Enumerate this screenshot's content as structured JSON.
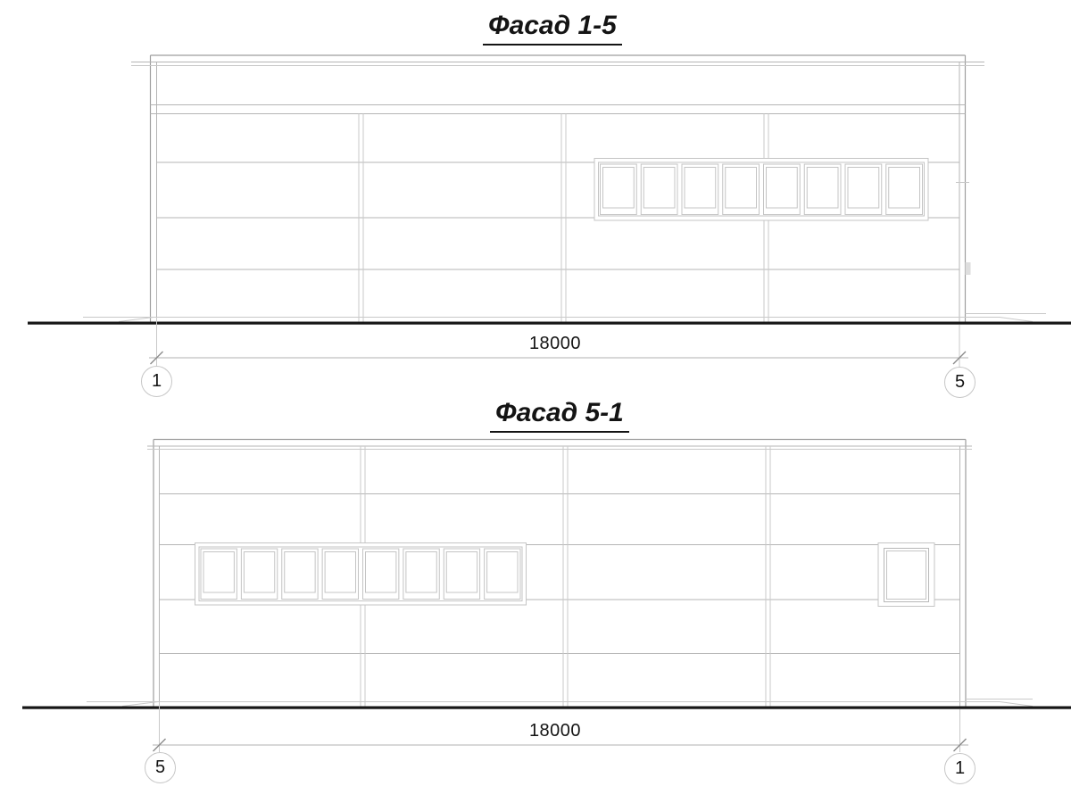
{
  "page": {
    "background_color": "#ffffff"
  },
  "facades": [
    {
      "title": "Фасад 1-5",
      "dimension_label": "18000",
      "grid_marker_left": "1",
      "grid_marker_right": "5",
      "window_band_panes": 8
    },
    {
      "title": "Фасад 5-1",
      "dimension_label": "18000",
      "grid_marker_left": "5",
      "grid_marker_right": "1",
      "window_band_panes": 8
    }
  ],
  "colors": {
    "line_dark": "#9e9e9e",
    "line_mid": "#b5b5b5",
    "line_light": "#c9c9c9",
    "ground": "#161616",
    "text": "#141414"
  }
}
